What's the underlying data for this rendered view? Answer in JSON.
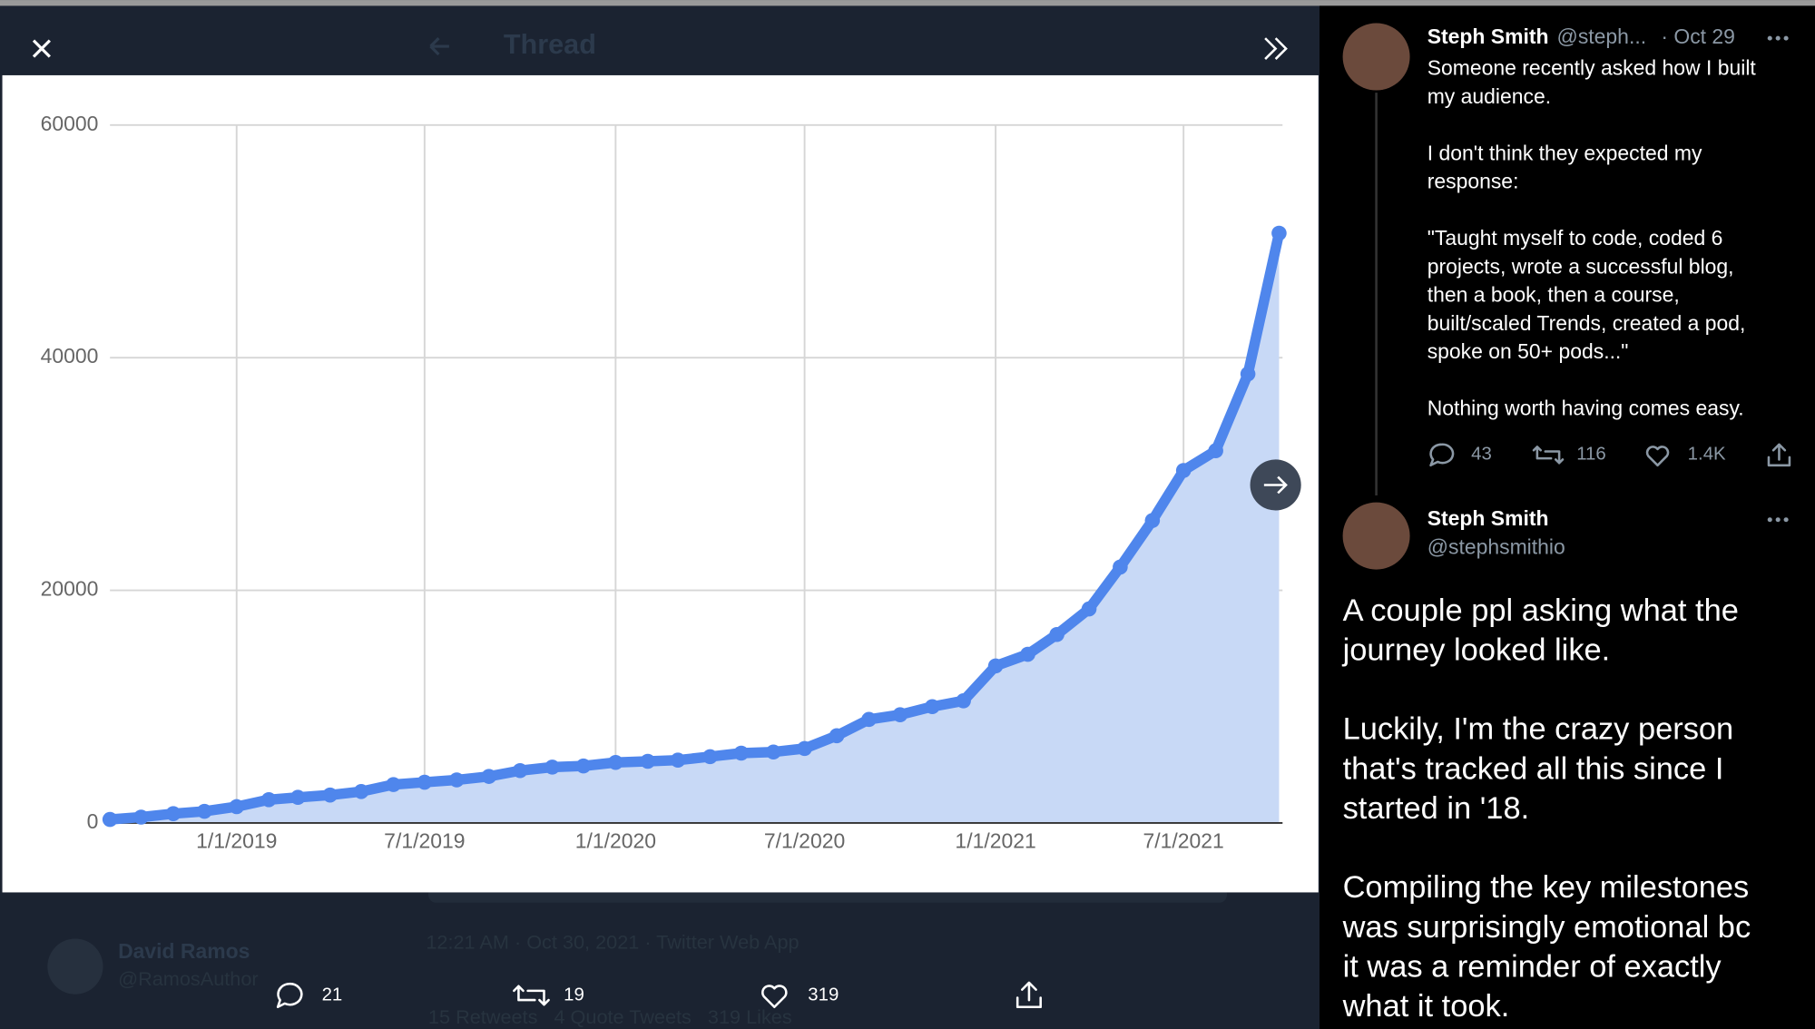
{
  "modal": {
    "header": "Thread",
    "background": {
      "author": "David Ramos",
      "handle": "@RamosAuthor",
      "timestamp": "12:21 AM · Oct 30, 2021 · Twitter Web App",
      "stats": "15 Retweets   4 Quote Tweets   319 Likes"
    },
    "actions": {
      "replies": "21",
      "retweets": "19",
      "likes": "319"
    }
  },
  "chart_data": {
    "type": "area",
    "color": "#4f86ec",
    "fill": "#c8d9f6",
    "grid": true,
    "x": [
      "2018-09-01",
      "2018-10-01",
      "2018-11-01",
      "2018-12-01",
      "2019-01-01",
      "2019-02-01",
      "2019-03-01",
      "2019-04-01",
      "2019-05-01",
      "2019-06-01",
      "2019-07-01",
      "2019-08-01",
      "2019-09-01",
      "2019-10-01",
      "2019-11-01",
      "2019-12-01",
      "2020-01-01",
      "2020-02-01",
      "2020-03-01",
      "2020-04-01",
      "2020-05-01",
      "2020-06-01",
      "2020-07-01",
      "2020-08-01",
      "2020-09-01",
      "2020-10-01",
      "2020-11-01",
      "2020-12-01",
      "2021-01-01",
      "2021-02-01",
      "2021-03-01",
      "2021-04-01",
      "2021-05-01",
      "2021-06-01",
      "2021-07-01",
      "2021-08-01",
      "2021-09-01",
      "2021-10-01"
    ],
    "values": [
      300,
      500,
      800,
      1000,
      1400,
      2000,
      2200,
      2400,
      2700,
      3300,
      3500,
      3700,
      4000,
      4500,
      4800,
      4900,
      5200,
      5300,
      5400,
      5700,
      6000,
      6100,
      6400,
      7500,
      8900,
      9300,
      10000,
      10500,
      13500,
      14500,
      16200,
      18400,
      22000,
      26000,
      30300,
      32000,
      38600,
      50700
    ],
    "xlim": [
      "2018-09-01",
      "2021-10-01"
    ],
    "xticks": [
      {
        "value": "2019-01-01",
        "label": "1/1/2019"
      },
      {
        "value": "2019-07-01",
        "label": "7/1/2019"
      },
      {
        "value": "2020-01-01",
        "label": "1/1/2020"
      },
      {
        "value": "2020-07-01",
        "label": "7/1/2020"
      },
      {
        "value": "2021-01-01",
        "label": "1/1/2021"
      },
      {
        "value": "2021-07-01",
        "label": "7/1/2021"
      }
    ],
    "ylim": [
      0,
      60000
    ],
    "yticks": [
      0,
      20000,
      40000,
      60000
    ]
  },
  "sidebar": {
    "tweet1": {
      "name": "Steph Smith",
      "handle": "@steph...",
      "date": "· Oct 29",
      "paragraphs": [
        [
          "Someone recently asked how I built",
          "my audience."
        ],
        [
          "I don't think they expected my",
          "response:"
        ],
        [
          "\"Taught myself to code, coded 6",
          "projects, wrote a successful blog,",
          "then a book, then a course,",
          "built/scaled Trends, created a pod,",
          "spoke on 50+ pods...\""
        ],
        [
          "Nothing worth having comes easy."
        ]
      ],
      "replies": "43",
      "retweets": "116",
      "likes": "1.4K"
    },
    "tweet2": {
      "name": "Steph Smith",
      "handle": "@stephsmithio",
      "paragraphs": [
        [
          "A couple ppl asking what the",
          "journey looked like."
        ],
        [
          "Luckily, I'm the crazy person",
          "that's tracked all this since I",
          "started in '18."
        ],
        [
          "Compiling the key milestones",
          "was surprisingly emotional bc",
          "it was a reminder of exactly",
          "what it took."
        ]
      ]
    }
  }
}
